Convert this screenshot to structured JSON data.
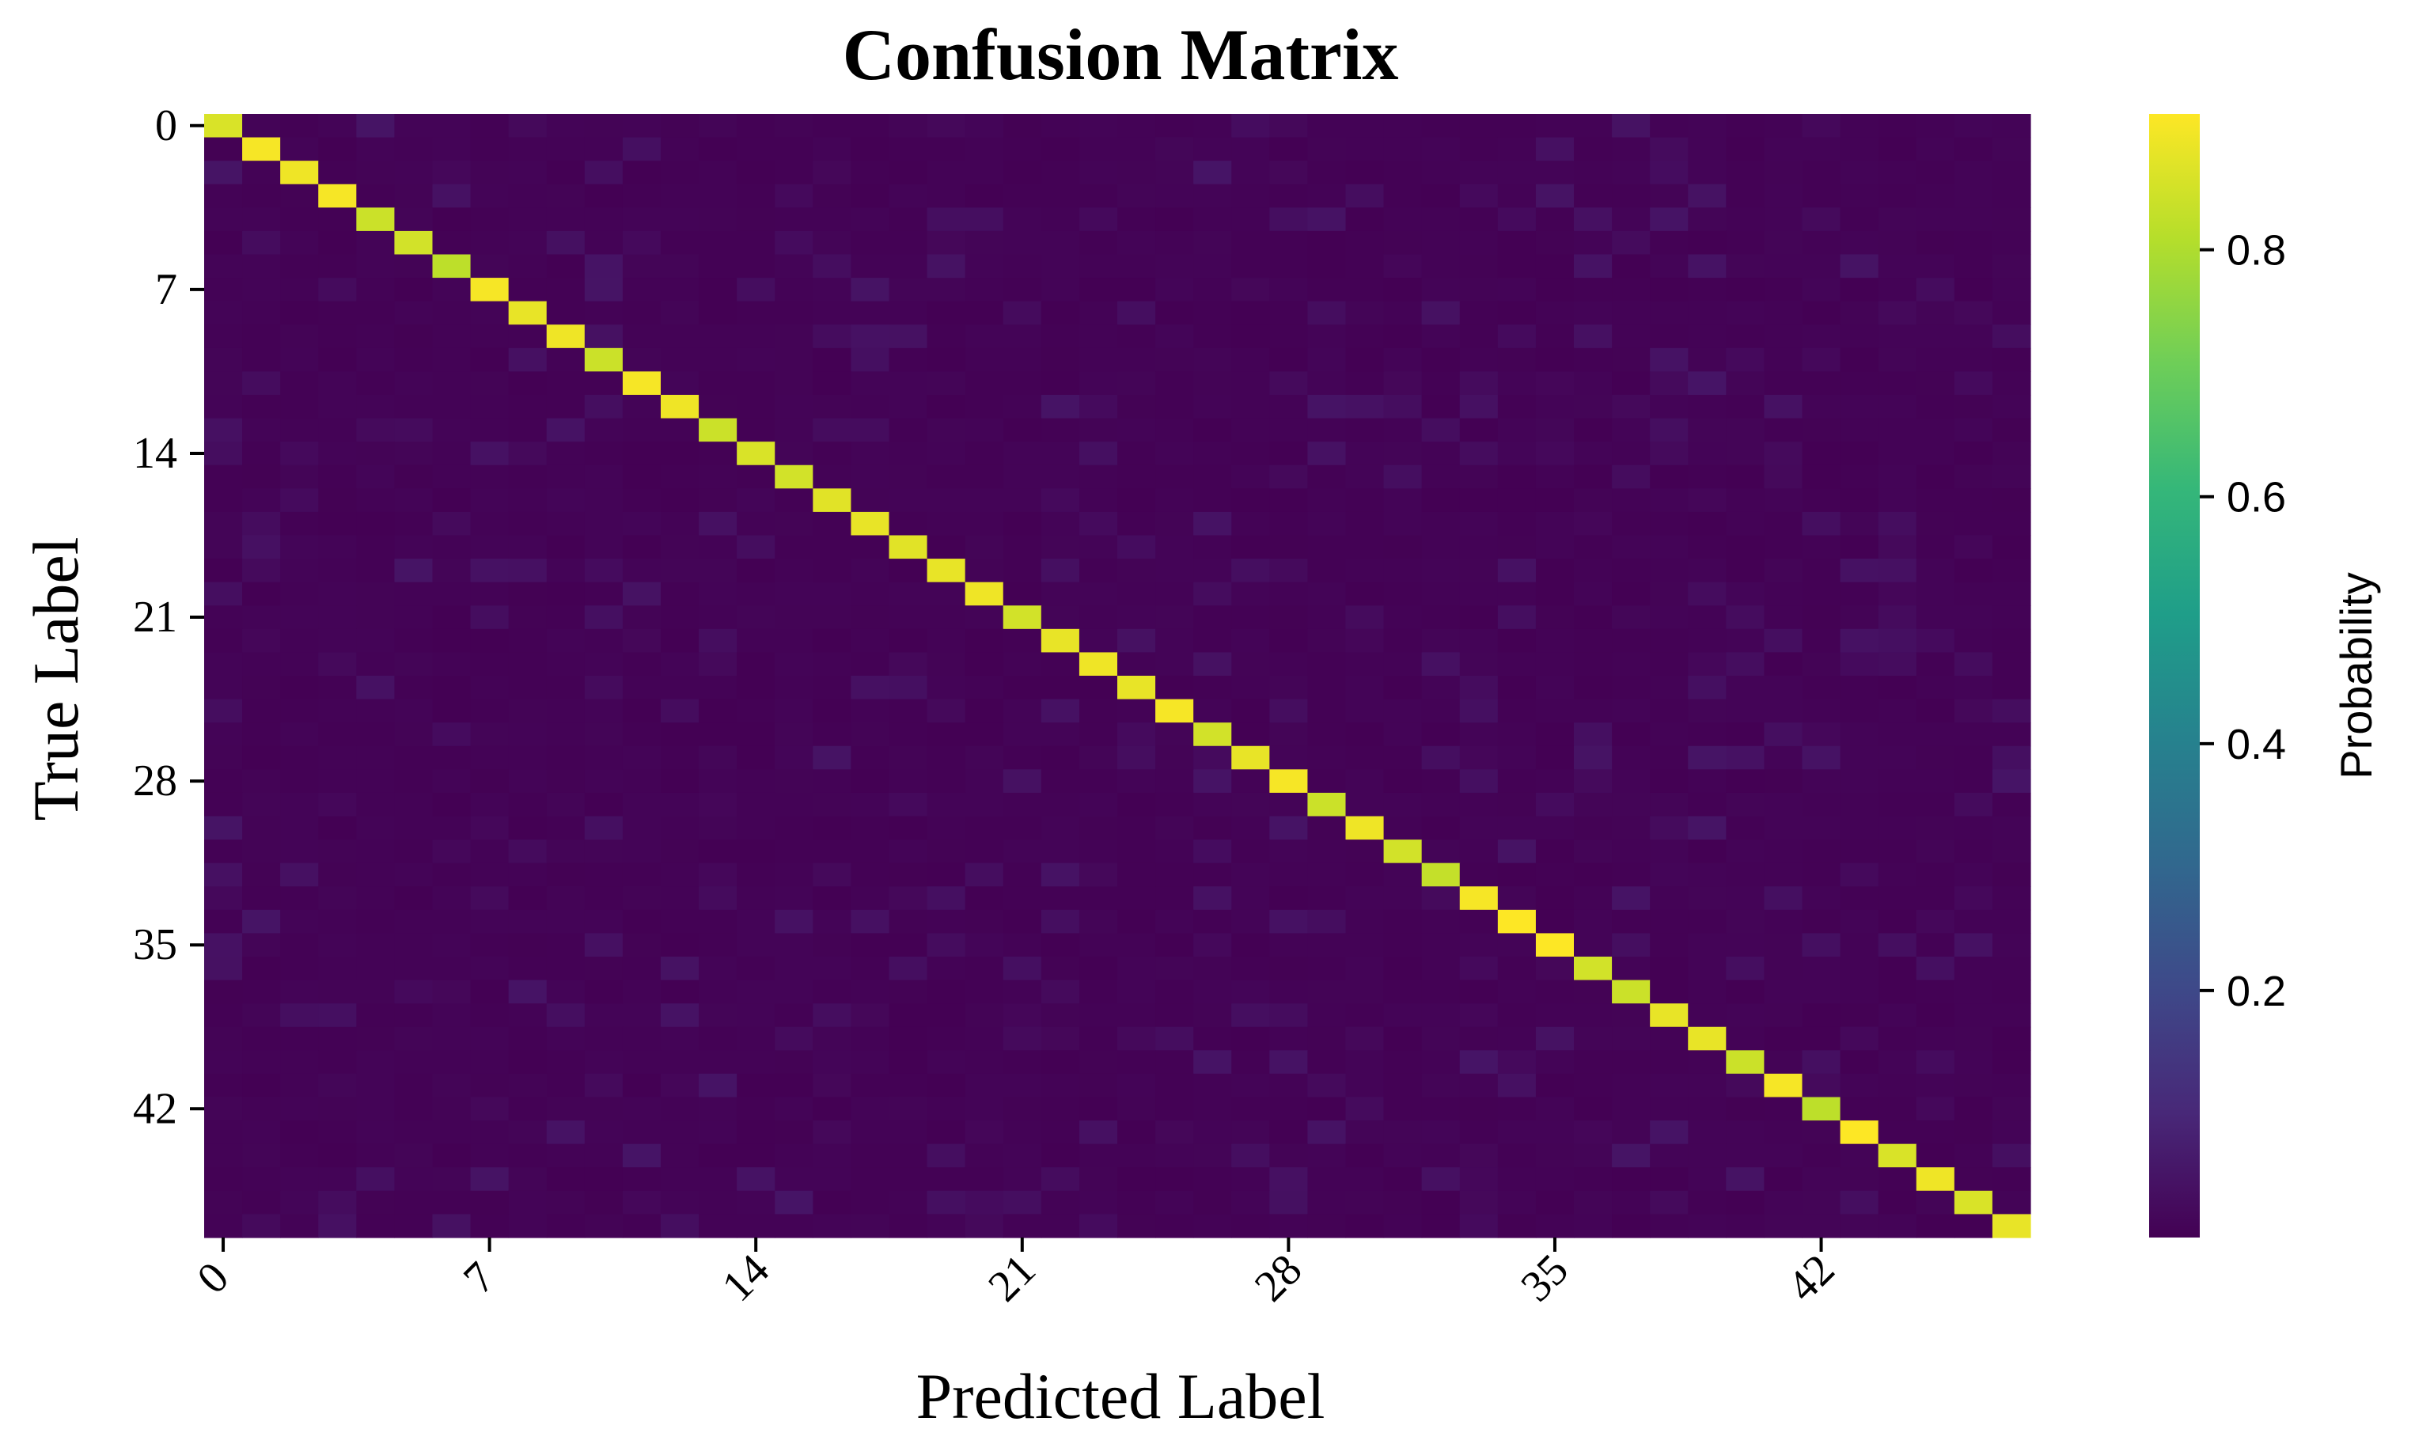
{
  "chart_data": {
    "type": "heatmap",
    "title": "Confusion Matrix",
    "xlabel": "Predicted Label",
    "ylabel": "True Label",
    "n_classes": 48,
    "xticks": [
      0,
      7,
      14,
      21,
      28,
      35,
      42
    ],
    "yticks": [
      0,
      7,
      14,
      21,
      28,
      35,
      42
    ],
    "colormap": "viridis",
    "colorbar": {
      "label": "Probability",
      "ticks": [
        0.2,
        0.4,
        0.6,
        0.8
      ],
      "tick_labels": [
        "0.2",
        "0.4",
        "0.6",
        "0.8"
      ],
      "range": [
        0.0,
        0.91
      ]
    },
    "diagonal_values": [
      0.86,
      0.9,
      0.89,
      0.9,
      0.84,
      0.85,
      0.82,
      0.9,
      0.88,
      0.89,
      0.84,
      0.9,
      0.89,
      0.84,
      0.86,
      0.85,
      0.87,
      0.88,
      0.87,
      0.88,
      0.89,
      0.85,
      0.88,
      0.89,
      0.88,
      0.9,
      0.85,
      0.88,
      0.9,
      0.84,
      0.89,
      0.85,
      0.83,
      0.9,
      0.91,
      0.91,
      0.85,
      0.84,
      0.88,
      0.88,
      0.84,
      0.9,
      0.82,
      0.91,
      0.86,
      0.89,
      0.86,
      0.88
    ],
    "off_diagonal_range": [
      0.0,
      0.05
    ]
  },
  "colors": {
    "viridis_stops": [
      "#440154",
      "#482878",
      "#3e4989",
      "#31688e",
      "#26828e",
      "#1f9e89",
      "#35b779",
      "#6ece58",
      "#b5de2b",
      "#fde725"
    ],
    "background": "#ffffff",
    "text": "#000000"
  }
}
